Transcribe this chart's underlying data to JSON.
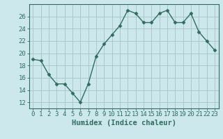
{
  "x": [
    0,
    1,
    2,
    3,
    4,
    5,
    6,
    7,
    8,
    9,
    10,
    11,
    12,
    13,
    14,
    15,
    16,
    17,
    18,
    19,
    20,
    21,
    22,
    23
  ],
  "y": [
    19.0,
    18.8,
    16.5,
    15.0,
    15.0,
    13.5,
    12.0,
    15.0,
    19.5,
    21.5,
    23.0,
    24.5,
    27.0,
    26.5,
    25.0,
    25.0,
    26.5,
    27.0,
    25.0,
    25.0,
    26.5,
    23.5,
    22.0,
    20.5
  ],
  "line_color": "#2d6e5e",
  "marker": "D",
  "marker_size": 2.5,
  "bg_color": "#cce8ec",
  "grid_color": "#aac8cc",
  "axis_color": "#2d6e5e",
  "xlabel": "Humidex (Indice chaleur)",
  "xlim": [
    -0.5,
    23.5
  ],
  "ylim": [
    11,
    28
  ],
  "yticks": [
    12,
    14,
    16,
    18,
    20,
    22,
    24,
    26
  ],
  "xticks": [
    0,
    1,
    2,
    3,
    4,
    5,
    6,
    7,
    8,
    9,
    10,
    11,
    12,
    13,
    14,
    15,
    16,
    17,
    18,
    19,
    20,
    21,
    22,
    23
  ],
  "tick_fontsize": 6.5,
  "label_fontsize": 7.5
}
